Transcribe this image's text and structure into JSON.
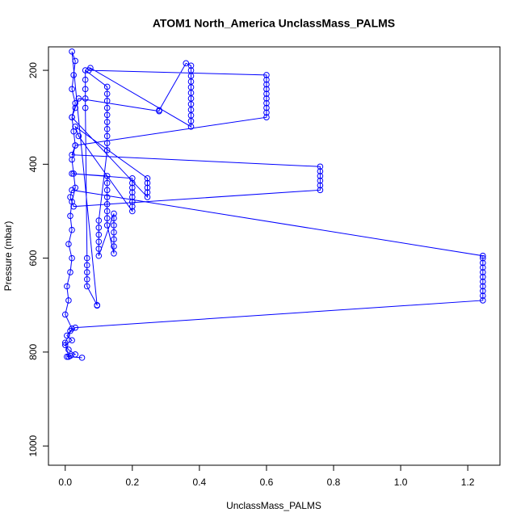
{
  "chart_data": {
    "type": "scatter",
    "lines": true,
    "markers": true,
    "title": "ATOM1 North_America UnclassMass_PALMS",
    "x_label": "UnclassMass_PALMS",
    "y_label": "Pressure (mbar)",
    "color": "#0000ff",
    "x": [
      0.005,
      0.015,
      0.03,
      0.01,
      0,
      0.02,
      0.005,
      0.015,
      0.03,
      1.245,
      1.245,
      1.245,
      1.245,
      1.245,
      1.245,
      1.245,
      1.245,
      1.245,
      1.245,
      1.245,
      0.02,
      0.015,
      0.025,
      0.76,
      0.76,
      0.76,
      0.76,
      0.76,
      0.76,
      0.02,
      0.03,
      0.6,
      0.6,
      0.6,
      0.6,
      0.6,
      0.6,
      0.6,
      0.6,
      0.6,
      0.6,
      0.07,
      0.075,
      0.375,
      0.375,
      0.375,
      0.375,
      0.375,
      0.375,
      0.375,
      0.375,
      0.375,
      0.375,
      0.375,
      0.375,
      0.36,
      0.28,
      0.28,
      0.04,
      0.03,
      0.02,
      0.245,
      0.245,
      0.245,
      0.245,
      0.245,
      0.03,
      0.04,
      0.2,
      0.2,
      0.2,
      0.2,
      0.2,
      0.2,
      0.2,
      0.2,
      0.02,
      0.125,
      0.125,
      0.125,
      0.125,
      0.125,
      0.125,
      0.125,
      0.125,
      0.145,
      0.145,
      0.145,
      0.145,
      0.145,
      0.145,
      0.145,
      0.1,
      0.1,
      0.1,
      0.1,
      0.1,
      0.1,
      0.125,
      0.125,
      0.125,
      0.125,
      0.125,
      0.125,
      0.125,
      0.125,
      0.125,
      0.125,
      0.06,
      0.06,
      0.06,
      0.06,
      0.06,
      0.065,
      0.065,
      0.065,
      0.065,
      0.065,
      0.095,
      0.095,
      0.02,
      0.03,
      0.025,
      0.02,
      0.03,
      0.02,
      0.025,
      0.03,
      0.02,
      0.025,
      0.03,
      0.02,
      0.015,
      0.02,
      0.01,
      0.02,
      0.015,
      0.005,
      0.01,
      0,
      0.02,
      0,
      0.01,
      0.05
    ],
    "values": [
      810,
      808,
      805,
      795,
      785,
      775,
      765,
      755,
      748,
      690,
      680,
      670,
      660,
      650,
      640,
      630,
      620,
      610,
      600,
      595,
      455,
      470,
      490,
      455,
      445,
      435,
      425,
      415,
      405,
      380,
      360,
      300,
      290,
      280,
      270,
      260,
      250,
      240,
      230,
      220,
      210,
      200,
      195,
      320,
      308,
      296,
      284,
      272,
      260,
      248,
      236,
      224,
      212,
      200,
      190,
      185,
      285,
      287,
      260,
      280,
      300,
      470,
      460,
      450,
      440,
      430,
      320,
      340,
      500,
      490,
      480,
      470,
      460,
      450,
      440,
      430,
      420,
      425,
      440,
      455,
      470,
      485,
      500,
      515,
      530,
      590,
      575,
      560,
      545,
      530,
      515,
      505,
      595,
      580,
      565,
      550,
      535,
      520,
      370,
      355,
      340,
      325,
      310,
      295,
      280,
      265,
      250,
      235,
      200,
      220,
      240,
      260,
      280,
      600,
      615,
      630,
      645,
      660,
      700,
      701,
      160,
      180,
      210,
      240,
      270,
      300,
      330,
      360,
      390,
      420,
      450,
      480,
      510,
      540,
      570,
      600,
      630,
      660,
      690,
      720,
      750,
      780,
      810,
      812
    ],
    "xlim": [
      -0.05,
      1.296
    ],
    "ylim": [
      1041,
      150
    ],
    "y_reversed": true,
    "xticks": [
      {
        "value": 0,
        "label": "0.0"
      },
      0.2,
      0.4,
      0.6,
      0.8,
      {
        "value": 1,
        "label": "1.0"
      },
      1.2
    ],
    "yticks": [
      200,
      400,
      600,
      800,
      1000
    ]
  }
}
